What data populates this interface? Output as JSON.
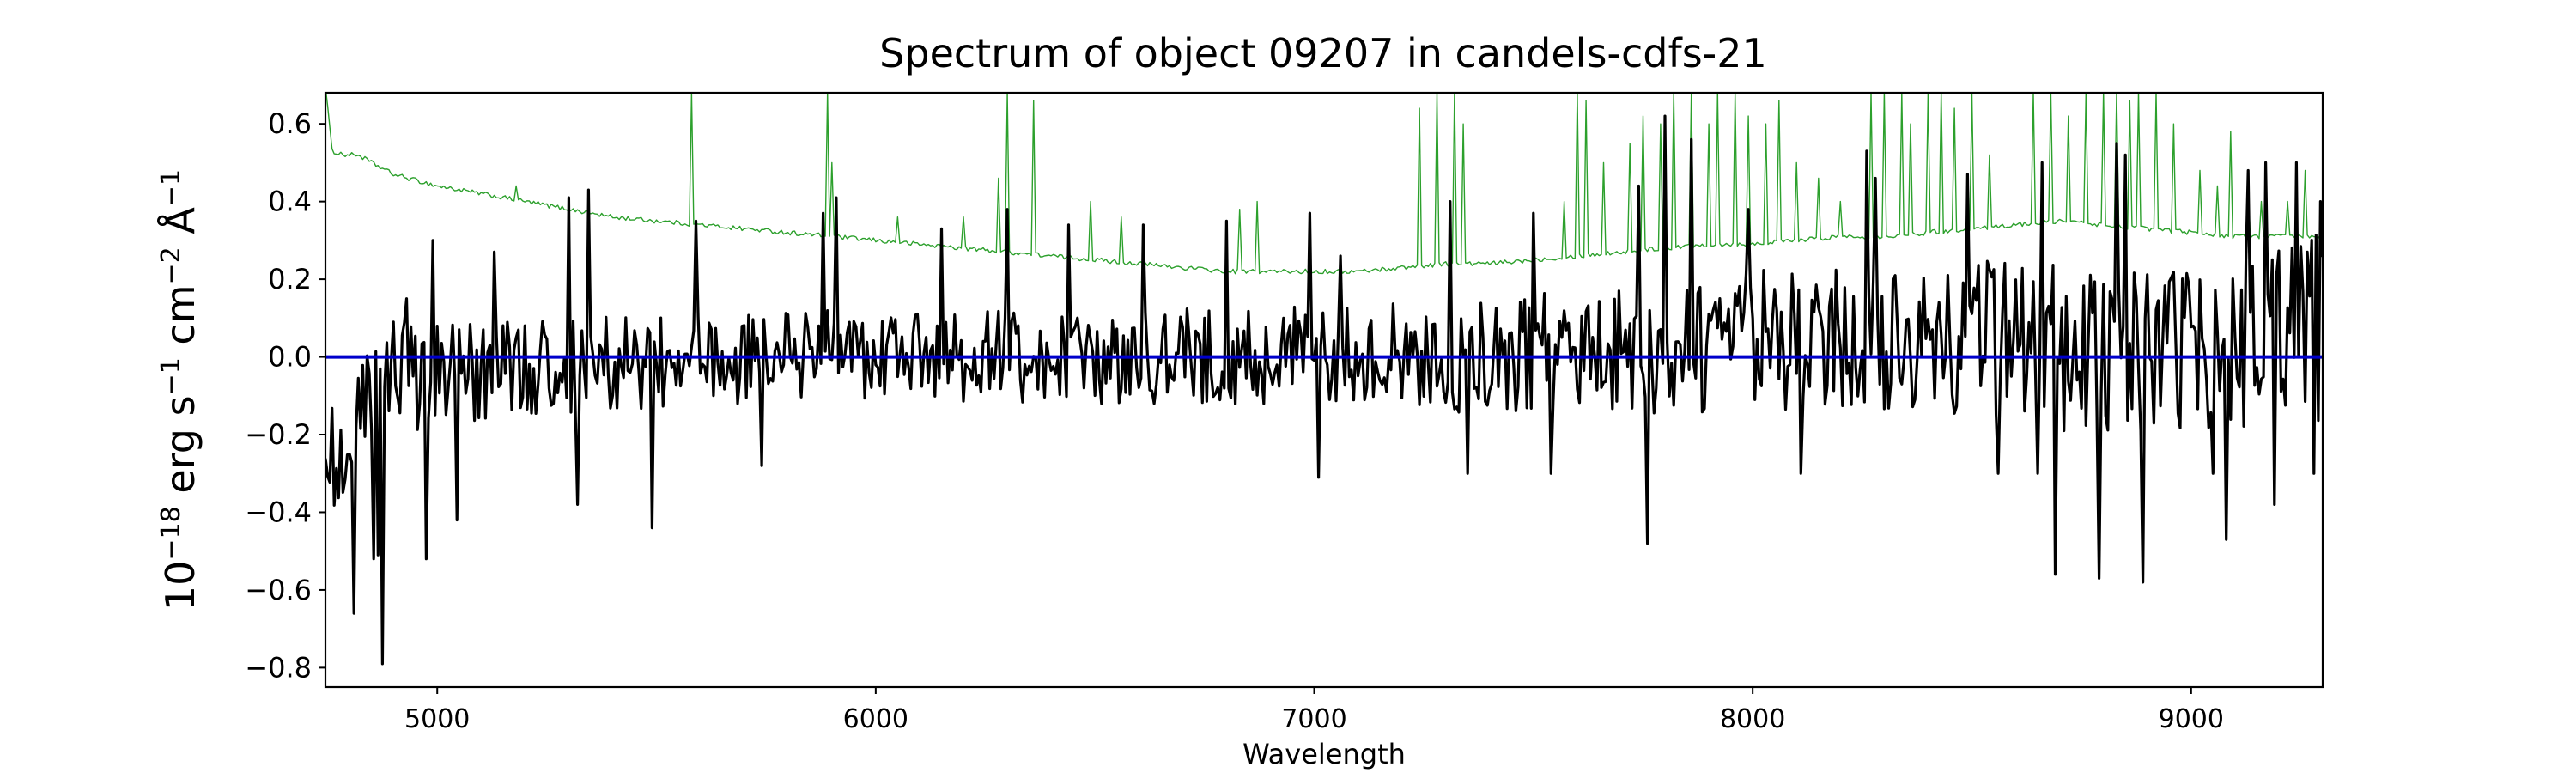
{
  "chart_data": {
    "type": "line",
    "title": "Spectrum of object 09207 in candels-cdfs-21",
    "xlabel": "Wavelength",
    "ylabel": "10^{-18} erg s^{-1} cm^{-2} Å^{-1}",
    "xlim": [
      4745,
      9300
    ],
    "ylim": [
      -0.85,
      0.68
    ],
    "xticks": [
      5000,
      6000,
      7000,
      8000,
      9000
    ],
    "yticks": [
      -0.8,
      -0.6,
      -0.4,
      -0.2,
      0.0,
      0.2,
      0.4,
      0.6
    ],
    "ytick_labels": [
      "−0.8",
      "−0.6",
      "−0.4",
      "−0.2",
      "0.0",
      "0.2",
      "0.4",
      "0.6"
    ],
    "grid": false,
    "series": [
      {
        "role": "error",
        "color": "#2ca02c",
        "wave_step": 5,
        "x": [
          4745,
          4760,
          4790,
          4820,
          4850,
          4900,
          5000,
          5100,
          5200,
          5300,
          5400,
          5500,
          5600,
          5700,
          5800,
          5900,
          6000,
          6100,
          6200,
          6300,
          6400,
          6500,
          6600,
          6700,
          6800,
          6900,
          7000,
          7100,
          7200,
          7300,
          7400,
          7500,
          7600,
          7700,
          7800,
          7900,
          8000,
          8100,
          8200,
          8300,
          8400,
          8500,
          8600,
          8700,
          8800,
          8900,
          9000,
          9100,
          9200,
          9300
        ],
        "y": [
          0.7,
          0.53,
          0.52,
          0.52,
          0.5,
          0.47,
          0.44,
          0.42,
          0.4,
          0.38,
          0.36,
          0.35,
          0.34,
          0.33,
          0.32,
          0.31,
          0.3,
          0.29,
          0.28,
          0.27,
          0.26,
          0.25,
          0.24,
          0.23,
          0.22,
          0.22,
          0.22,
          0.22,
          0.23,
          0.24,
          0.24,
          0.25,
          0.26,
          0.27,
          0.28,
          0.29,
          0.29,
          0.3,
          0.31,
          0.31,
          0.32,
          0.33,
          0.34,
          0.35,
          0.34,
          0.33,
          0.32,
          0.31,
          0.31,
          0.31
        ],
        "spikes": [
          [
            5180,
            0.44
          ],
          [
            5580,
            0.68
          ],
          [
            5890,
            0.68
          ],
          [
            5900,
            0.5
          ],
          [
            6050,
            0.36
          ],
          [
            6200,
            0.36
          ],
          [
            6280,
            0.46
          ],
          [
            6300,
            0.68
          ],
          [
            6360,
            0.66
          ],
          [
            6490,
            0.4
          ],
          [
            6560,
            0.36
          ],
          [
            6830,
            0.38
          ],
          [
            6870,
            0.4
          ],
          [
            7240,
            0.64
          ],
          [
            7280,
            0.68
          ],
          [
            7320,
            0.68
          ],
          [
            7340,
            0.6
          ],
          [
            7570,
            0.4
          ],
          [
            7600,
            0.68
          ],
          [
            7620,
            0.66
          ],
          [
            7660,
            0.5
          ],
          [
            7720,
            0.55
          ],
          [
            7750,
            0.62
          ],
          [
            7790,
            0.6
          ],
          [
            7820,
            0.68
          ],
          [
            7860,
            0.68
          ],
          [
            7900,
            0.6
          ],
          [
            7920,
            0.68
          ],
          [
            7960,
            0.68
          ],
          [
            7990,
            0.62
          ],
          [
            8030,
            0.6
          ],
          [
            8060,
            0.66
          ],
          [
            8100,
            0.5
          ],
          [
            8150,
            0.46
          ],
          [
            8200,
            0.4
          ],
          [
            8270,
            0.68
          ],
          [
            8300,
            0.68
          ],
          [
            8340,
            0.68
          ],
          [
            8360,
            0.6
          ],
          [
            8400,
            0.68
          ],
          [
            8430,
            0.68
          ],
          [
            8460,
            0.64
          ],
          [
            8500,
            0.68
          ],
          [
            8540,
            0.52
          ],
          [
            8640,
            0.68
          ],
          [
            8680,
            0.68
          ],
          [
            8720,
            0.62
          ],
          [
            8760,
            0.68
          ],
          [
            8800,
            0.68
          ],
          [
            8830,
            0.68
          ],
          [
            8860,
            0.66
          ],
          [
            8880,
            0.68
          ],
          [
            8920,
            0.68
          ],
          [
            8960,
            0.6
          ],
          [
            9020,
            0.48
          ],
          [
            9060,
            0.44
          ],
          [
            9090,
            0.58
          ],
          [
            9130,
            0.44
          ],
          [
            9160,
            0.4
          ],
          [
            9220,
            0.4
          ],
          [
            9260,
            0.48
          ]
        ]
      },
      {
        "role": "flux",
        "color": "#000000",
        "wave_step": 5,
        "x": [
          4745,
          4760,
          4775,
          4790,
          4805,
          4820,
          4835,
          4850,
          4865,
          4880,
          4900,
          4950,
          5000,
          5050,
          5100,
          5150,
          5200,
          5300,
          5400,
          5500,
          5600,
          5700,
          5800,
          5900,
          6000,
          6100,
          6200,
          6300,
          6400,
          6500,
          6600,
          6700,
          6800,
          6900,
          7000,
          7100,
          7200,
          7300,
          7400,
          7500,
          7600,
          7700,
          7800,
          7900,
          8000,
          8100,
          8200,
          8300,
          8400,
          8500,
          8600,
          8650,
          8700,
          8750,
          8800,
          8850,
          8900,
          8950,
          9000,
          9050,
          9100,
          9150,
          9200,
          9250,
          9300
        ],
        "y": [
          -0.15,
          -0.25,
          -0.3,
          -0.28,
          -0.22,
          -0.2,
          -0.15,
          -0.12,
          -0.1,
          -0.08,
          -0.05,
          -0.05,
          -0.04,
          -0.04,
          -0.04,
          -0.03,
          -0.03,
          -0.02,
          -0.02,
          -0.02,
          -0.01,
          -0.01,
          0.0,
          0.0,
          0.0,
          0.0,
          0.0,
          0.0,
          0.0,
          0.0,
          0.0,
          0.0,
          0.0,
          0.0,
          0.0,
          0.0,
          0.0,
          0.0,
          0.0,
          0.01,
          0.02,
          0.02,
          0.02,
          0.03,
          0.04,
          0.05,
          0.05,
          0.06,
          0.06,
          0.06,
          0.05,
          0.03,
          0.02,
          0.02,
          0.03,
          0.03,
          0.04,
          0.04,
          0.04,
          0.05,
          0.06,
          0.07,
          0.08,
          0.08,
          0.08
        ],
        "noise_x": [
          4745,
          5000,
          5500,
          6000,
          6500,
          7000,
          7500,
          8000,
          8300,
          8600,
          8700,
          9000,
          9300
        ],
        "noise_amp": [
          0.18,
          0.13,
          0.12,
          0.12,
          0.12,
          0.13,
          0.15,
          0.18,
          0.2,
          0.22,
          0.24,
          0.24,
          0.26
        ],
        "features": [
          [
            4810,
            -0.66
          ],
          [
            4855,
            -0.52
          ],
          [
            4865,
            -0.51
          ],
          [
            4875,
            -0.79
          ],
          [
            4900,
            0.09
          ],
          [
            4930,
            0.15
          ],
          [
            4975,
            -0.52
          ],
          [
            4990,
            0.3
          ],
          [
            5045,
            -0.42
          ],
          [
            5130,
            0.27
          ],
          [
            5300,
            0.41
          ],
          [
            5320,
            -0.38
          ],
          [
            5345,
            0.43
          ],
          [
            5490,
            -0.44
          ],
          [
            5590,
            0.35
          ],
          [
            5740,
            -0.28
          ],
          [
            5880,
            0.37
          ],
          [
            5910,
            0.41
          ],
          [
            6150,
            0.33
          ],
          [
            6300,
            0.38
          ],
          [
            6440,
            0.34
          ],
          [
            6610,
            0.34
          ],
          [
            6800,
            0.35
          ],
          [
            6990,
            0.37
          ],
          [
            7010,
            -0.31
          ],
          [
            7060,
            0.26
          ],
          [
            7310,
            0.4
          ],
          [
            7350,
            -0.3
          ],
          [
            7500,
            0.37
          ],
          [
            7540,
            -0.3
          ],
          [
            7740,
            0.44
          ],
          [
            7760,
            -0.48
          ],
          [
            7800,
            0.62
          ],
          [
            7860,
            0.56
          ],
          [
            7990,
            0.38
          ],
          [
            8110,
            -0.3
          ],
          [
            8260,
            0.53
          ],
          [
            8280,
            0.46
          ],
          [
            8490,
            0.47
          ],
          [
            8560,
            -0.3
          ],
          [
            8650,
            -0.3
          ],
          [
            8660,
            0.5
          ],
          [
            8690,
            -0.56
          ],
          [
            8790,
            -0.57
          ],
          [
            8830,
            0.55
          ],
          [
            8850,
            0.52
          ],
          [
            8890,
            -0.58
          ],
          [
            9050,
            -0.3
          ],
          [
            9080,
            -0.47
          ],
          [
            9130,
            0.48
          ],
          [
            9170,
            0.5
          ],
          [
            9190,
            -0.38
          ],
          [
            9240,
            0.5
          ],
          [
            9280,
            -0.3
          ],
          [
            9295,
            0.4
          ]
        ]
      },
      {
        "role": "model",
        "color": "#0000cc",
        "x": [
          4745,
          9300
        ],
        "y": [
          0.0,
          0.0
        ]
      }
    ]
  }
}
